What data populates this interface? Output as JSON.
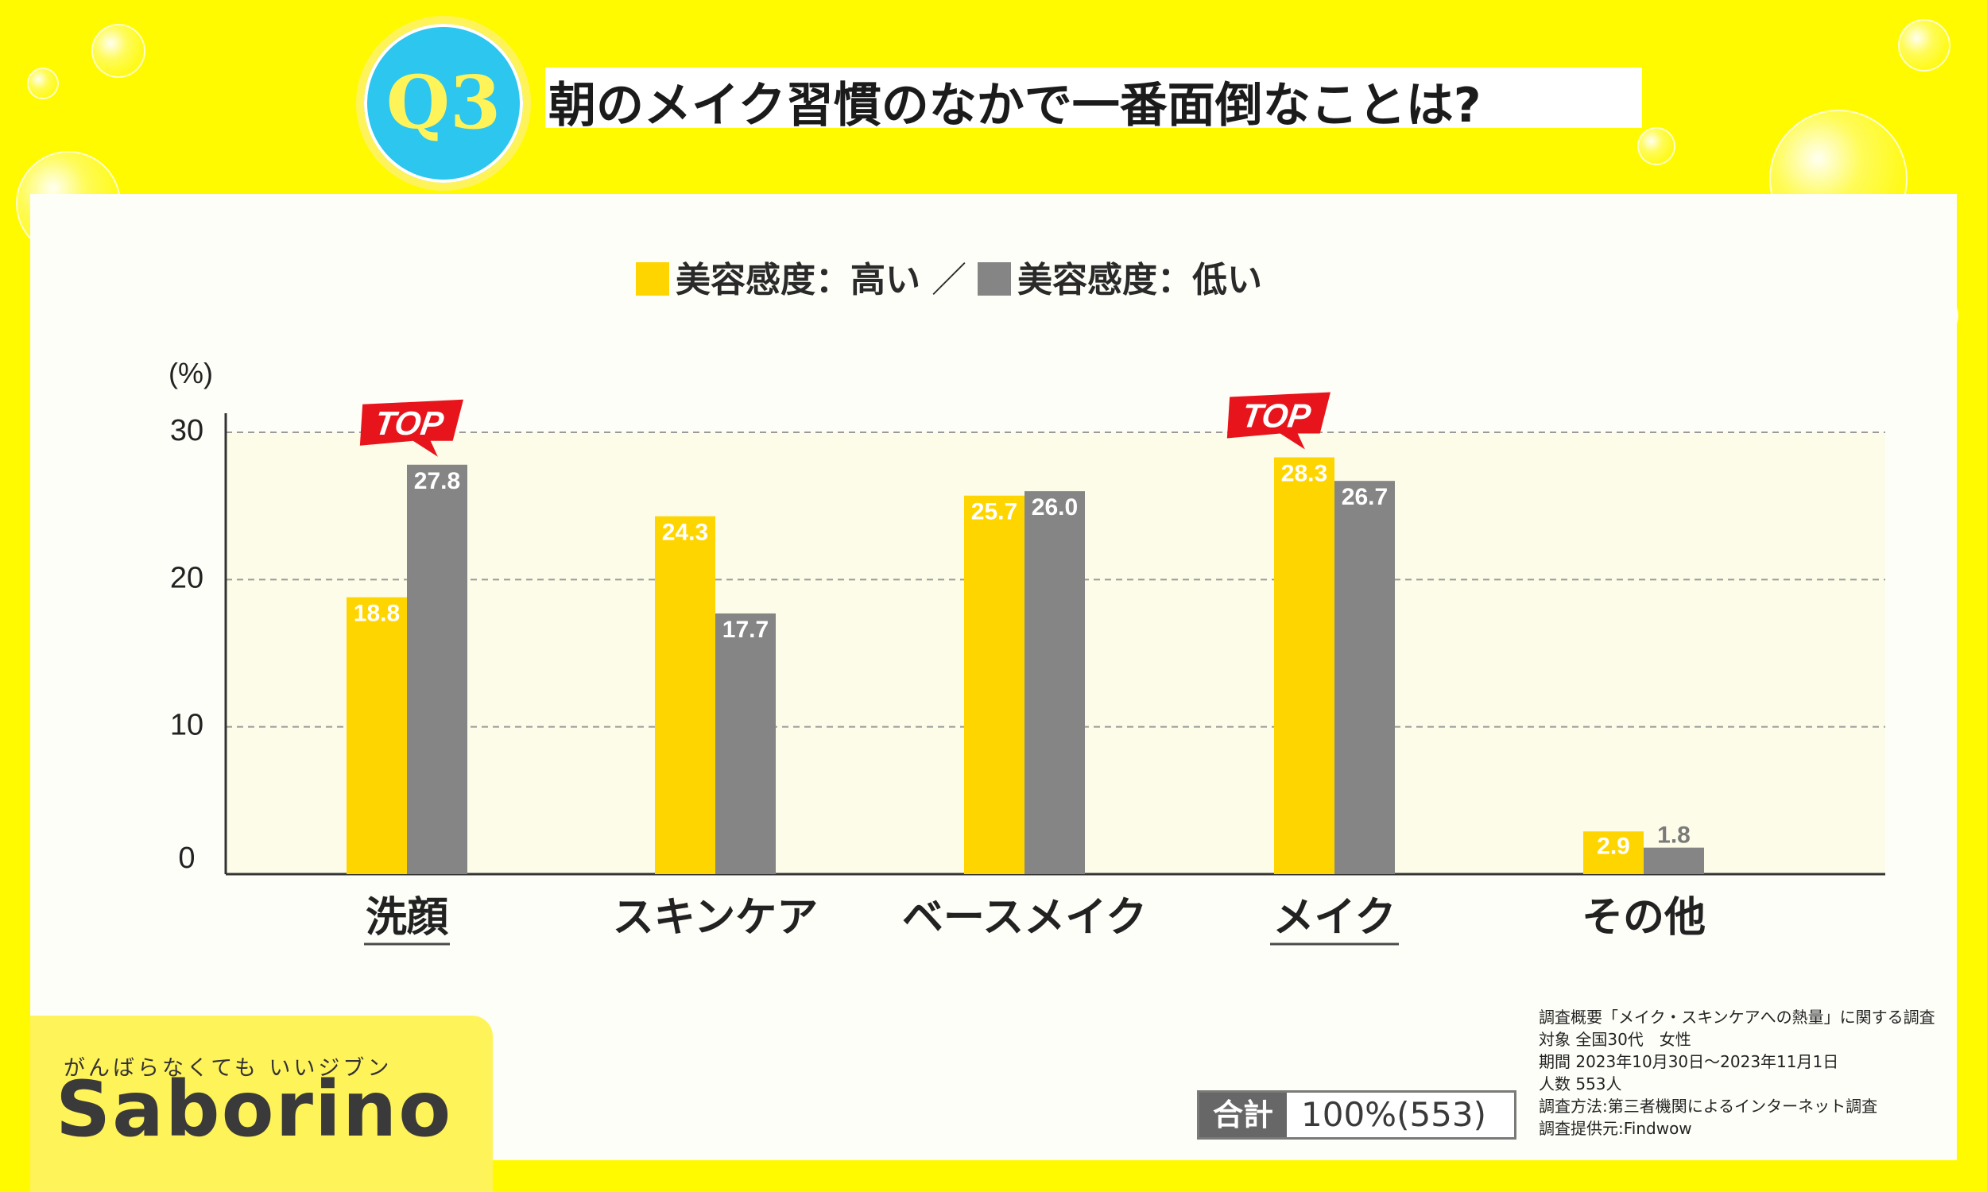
{
  "header": {
    "question_badge": "Q3",
    "title": "朝のメイク習慣のなかで一番面倒なことは?"
  },
  "legend": {
    "high_label": "美容感度：高い",
    "separator": "／",
    "low_label": "美容感度：低い"
  },
  "chart_data": {
    "type": "bar",
    "unit_label": "(%)",
    "categories": [
      "洗顔",
      "スキンケア",
      "ベースメイク",
      "メイク",
      "その他"
    ],
    "underlined_categories": [
      "洗顔",
      "メイク"
    ],
    "series": [
      {
        "name": "美容感度：高い",
        "color": "#ffd500",
        "values": [
          18.8,
          24.3,
          25.7,
          28.3,
          2.9
        ]
      },
      {
        "name": "美容感度：低い",
        "color": "#858585",
        "values": [
          27.8,
          17.7,
          26.0,
          26.7,
          1.8
        ]
      }
    ],
    "ylim": [
      0,
      30
    ],
    "yticks": [
      0,
      10,
      20,
      30
    ],
    "grid": true,
    "legend_position": "top-center",
    "top_markers": [
      {
        "label": "TOP",
        "category": "洗顔",
        "series": "美容感度：低い"
      },
      {
        "label": "TOP",
        "category": "メイク",
        "series": "美容感度：高い"
      }
    ]
  },
  "total": {
    "label": "合計",
    "value": "100%(553)"
  },
  "survey_notes": [
    "調査概要「メイク・スキンケアへの熱量」に関する調査",
    "対象 全国30代　女性",
    "期間 2023年10月30日～2023年11月1日",
    "人数 553人",
    "調査方法:第三者機関によるインターネット調査",
    "調査提供元:Findwow"
  ],
  "brand": {
    "tagline": "がんばらなくても いいジブン",
    "logo": "Saborino"
  },
  "colors": {
    "background": "#fffa00",
    "high": "#ffd500",
    "low": "#858585",
    "top_badge": "#e8141b",
    "badge": "#2cc6ee"
  }
}
